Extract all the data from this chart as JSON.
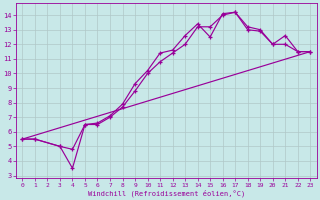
{
  "xlabel": "Windchill (Refroidissement éolien,°C)",
  "bg_color": "#c8e8e8",
  "grid_color": "#b0c8c8",
  "line_color": "#990099",
  "xlim": [
    -0.5,
    23.5
  ],
  "ylim": [
    2.8,
    14.8
  ],
  "xticks": [
    0,
    1,
    2,
    3,
    4,
    5,
    6,
    7,
    8,
    9,
    10,
    11,
    12,
    13,
    14,
    15,
    16,
    17,
    18,
    19,
    20,
    21,
    22,
    23
  ],
  "yticks": [
    3,
    4,
    5,
    6,
    7,
    8,
    9,
    10,
    11,
    12,
    13,
    14
  ],
  "curve_upper_x": [
    0,
    1,
    3,
    4,
    5,
    6,
    7,
    8,
    9,
    10,
    11,
    12,
    13,
    14,
    15,
    16,
    17,
    18,
    19,
    20,
    21,
    22,
    23
  ],
  "curve_upper_y": [
    5.5,
    5.5,
    5.0,
    3.5,
    6.5,
    6.6,
    7.1,
    7.9,
    9.3,
    10.2,
    11.4,
    11.6,
    12.6,
    13.4,
    12.5,
    14.1,
    14.2,
    13.2,
    13.0,
    12.0,
    12.6,
    11.5,
    11.5
  ],
  "curve_lower_x": [
    0,
    1,
    3,
    4,
    5,
    6,
    7,
    8,
    9,
    10,
    11,
    12,
    13,
    14,
    15,
    16,
    17,
    18,
    19,
    20,
    21,
    22,
    23
  ],
  "curve_lower_y": [
    5.5,
    5.5,
    5.0,
    4.8,
    6.5,
    6.5,
    7.0,
    7.7,
    8.8,
    10.0,
    10.8,
    11.4,
    12.0,
    13.2,
    13.2,
    14.0,
    14.2,
    13.0,
    12.9,
    12.0,
    12.0,
    11.5,
    11.5
  ],
  "line_x": [
    0,
    23
  ],
  "line_y": [
    5.5,
    11.5
  ]
}
